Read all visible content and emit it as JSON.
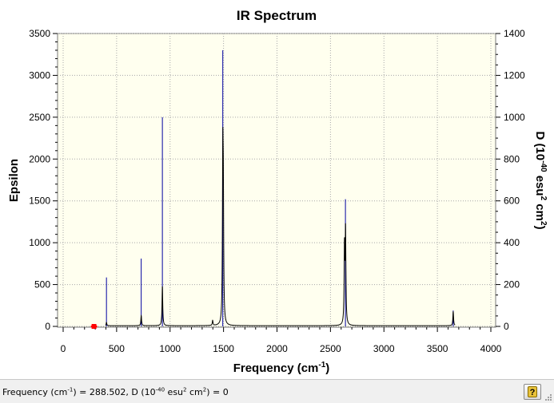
{
  "window": {
    "status": {
      "prefix": "Frequency (cm",
      "exp1": "-1",
      "mid1": ") = 288.502, D (10",
      "exp2": "-40",
      "mid2": " esu",
      "exp3": "2",
      "mid3": " cm",
      "exp4": "2",
      "suffix": ") = 0"
    },
    "help_button": {
      "icon": "help-icon",
      "label": "?"
    }
  },
  "chart_data": {
    "type": "line",
    "title": "IR Spectrum",
    "xlabel": {
      "text": "Frequency (cm",
      "sup": "-1",
      "tail": ")"
    },
    "ylabel": "Epsilon",
    "y2label": {
      "t1": "D (10",
      "s1": "-40",
      "t2": " esu",
      "s2": "2",
      "t3": " cm",
      "s3": "2",
      "t4": ")"
    },
    "xlim": [
      0,
      4000
    ],
    "ylim": [
      0,
      3500
    ],
    "y2lim": [
      0,
      1400
    ],
    "xticks": [
      0,
      500,
      1000,
      1500,
      2000,
      2500,
      3000,
      3500,
      4000
    ],
    "yticks": [
      0,
      500,
      1000,
      1500,
      2000,
      2500,
      3000,
      3500
    ],
    "y2ticks": [
      0,
      200,
      400,
      600,
      800,
      1000,
      1200,
      1400
    ],
    "grid": true,
    "background": "#ffffef",
    "spectrum_color": "#000000",
    "stick_color": "#0000a0",
    "marker": {
      "x": 288.502,
      "y": 0,
      "color": "#ff0000"
    },
    "sticks": [
      {
        "x": 405,
        "d": 234
      },
      {
        "x": 730,
        "d": 324
      },
      {
        "x": 928,
        "d": 1000
      },
      {
        "x": 1493,
        "d": 1320
      },
      {
        "x": 2640,
        "d": 608
      },
      {
        "x": 3648,
        "d": 76
      }
    ],
    "peaks": [
      {
        "x": 405,
        "eps": 40
      },
      {
        "x": 730,
        "eps": 120
      },
      {
        "x": 928,
        "eps": 470
      },
      {
        "x": 1398,
        "eps": 60
      },
      {
        "x": 1493,
        "eps": 1850
      },
      {
        "x": 1498,
        "eps": 1250
      },
      {
        "x": 2631,
        "eps": 900
      },
      {
        "x": 2641,
        "eps": 1100
      },
      {
        "x": 3648,
        "eps": 170
      }
    ]
  }
}
